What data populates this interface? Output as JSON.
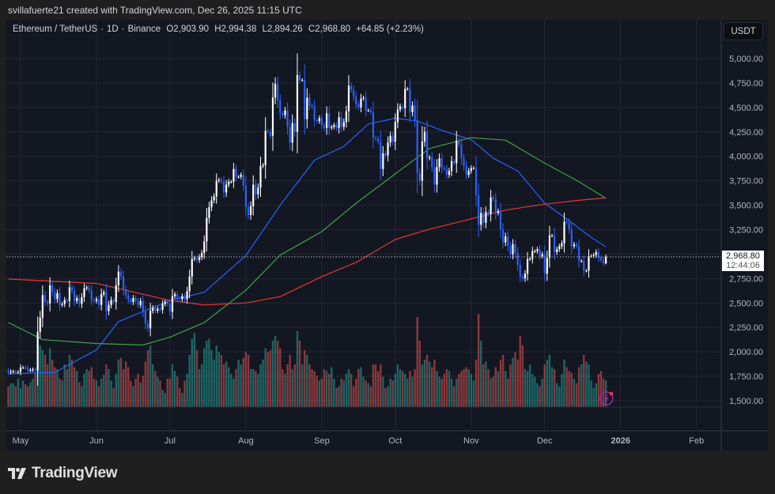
{
  "attribution": "svillafuerte21 created with TradingView.com, Dec 26, 2025 11:15 UTC",
  "legend": {
    "symbol": "Ethereum / TetherUS",
    "interval": "1D",
    "exchange": "Binance",
    "open": "O2,903.90",
    "high": "H2,994.38",
    "low": "L2,894.26",
    "close": "C2,968.80",
    "change": "+64.85 (+2.23%)"
  },
  "currency_button": "USDT",
  "last_price": {
    "value": "2,968.80",
    "countdown": "12:44:06"
  },
  "logo_text": "TradingView",
  "colors": {
    "up_candle": "#ffffff",
    "down_candle": "#2962ff",
    "ma_blue": "#2962ff",
    "ma_green": "#43a047",
    "ma_red": "#e53935",
    "volume_up": "#26a69a",
    "volume_down": "#ef5350",
    "background": "#131722",
    "alert_icon": "#9c27b0"
  },
  "icons": {
    "alert": "lightning-icon",
    "logo": "tradingview-logo-icon"
  },
  "chart_data": {
    "type": "candlestick",
    "first_date": "2025-04-26",
    "y_ticks": [
      "5,000.00",
      "4,750.00",
      "4,500.00",
      "4,250.00",
      "4,000.00",
      "3,750.00",
      "3,500.00",
      "3,250.00",
      "2,750.00",
      "2,500.00",
      "2,250.00",
      "2,000.00",
      "1,750.00",
      "1,500.00"
    ],
    "y_tick_values": [
      5000,
      4750,
      4500,
      4250,
      4000,
      3750,
      3500,
      3250,
      2750,
      2500,
      2250,
      2000,
      1750,
      1500
    ],
    "ylim": [
      1500,
      5000
    ],
    "x_ticks": [
      {
        "label": "May",
        "date": "2025-05-01"
      },
      {
        "label": "Jun",
        "date": "2025-06-01"
      },
      {
        "label": "Jul",
        "date": "2025-07-01"
      },
      {
        "label": "Aug",
        "date": "2025-08-01"
      },
      {
        "label": "Sep",
        "date": "2025-09-01"
      },
      {
        "label": "Oct",
        "date": "2025-10-01"
      },
      {
        "label": "Nov",
        "date": "2025-11-01"
      },
      {
        "label": "Dec",
        "date": "2025-12-01"
      },
      {
        "label": "2026",
        "date": "2026-01-01"
      },
      {
        "label": "Feb",
        "date": "2026-02-01"
      }
    ],
    "first_open": 1810,
    "last_candle": {
      "open": 2903.9,
      "high": 2994.38,
      "low": 2894.26,
      "close": 2968.8
    },
    "closes": [
      1790,
      1800,
      1800,
      1795,
      1795,
      1840,
      1840,
      1835,
      1810,
      1815,
      1820,
      1810,
      2205,
      2350,
      2580,
      2510,
      2495,
      2680,
      2610,
      2540,
      2600,
      2480,
      2490,
      2530,
      2520,
      2660,
      2620,
      2520,
      2550,
      2490,
      2560,
      2650,
      2660,
      2630,
      2530,
      2520,
      2540,
      2480,
      2590,
      2610,
      2415,
      2480,
      2530,
      2510,
      2680,
      2820,
      2770,
      2640,
      2580,
      2530,
      2510,
      2550,
      2520,
      2480,
      2520,
      2410,
      2290,
      2240,
      2420,
      2450,
      2420,
      2440,
      2430,
      2490,
      2510,
      2490,
      2410,
      2570,
      2590,
      2550,
      2540,
      2570,
      2540,
      2620,
      2770,
      2950,
      2960,
      2940,
      2970,
      3010,
      3130,
      3370,
      3480,
      3550,
      3590,
      3750,
      3760,
      3740,
      3630,
      3710,
      3740,
      3740,
      3870,
      3790,
      3790,
      3810,
      3700,
      3480,
      3400,
      3490,
      3710,
      3610,
      3680,
      3900,
      3910,
      4260,
      4250,
      4210,
      4600,
      4740,
      4570,
      4440,
      4420,
      4470,
      4300,
      4140,
      4340,
      4250,
      4830,
      4780,
      4780,
      4380,
      4600,
      4520,
      4510,
      4370,
      4360,
      4390,
      4320,
      4290,
      4440,
      4290,
      4300,
      4320,
      4290,
      4400,
      4300,
      4350,
      4460,
      4720,
      4680,
      4610,
      4530,
      4500,
      4590,
      4600,
      4470,
      4470,
      4450,
      4190,
      4180,
      4150,
      3870,
      4030,
      4010,
      4140,
      4210,
      4150,
      4350,
      4480,
      4510,
      4490,
      4690,
      4690,
      4450,
      4520,
      4370,
      3830,
      3750,
      4150,
      4250,
      3980,
      3990,
      3890,
      3710,
      3890,
      3980,
      3880,
      3870,
      3810,
      3850,
      3950,
      3930,
      4160,
      4120,
      3980,
      3900,
      3810,
      3850,
      3880,
      3880,
      3600,
      3300,
      3420,
      3320,
      3430,
      3410,
      3580,
      3560,
      3420,
      3440,
      3250,
      3120,
      3180,
      3080,
      3000,
      3100,
      3010,
      2890,
      2770,
      2750,
      2800,
      2950,
      2950,
      3030,
      3030,
      3050,
      2980,
      3000,
      2800,
      2960,
      3190,
      3190,
      3020,
      3050,
      3080,
      3110,
      3330,
      3320,
      3250,
      3080,
      3100,
      3080,
      2930,
      2930,
      2830,
      2830,
      2980,
      2980,
      2990,
      3020,
      2960,
      2940,
      2903.9,
      2968.8
    ],
    "volume_relative": [
      22,
      25,
      25,
      22,
      30,
      20,
      28,
      24,
      22,
      26,
      30,
      35,
      72,
      65,
      60,
      55,
      45,
      62,
      50,
      42,
      40,
      30,
      28,
      45,
      40,
      55,
      50,
      42,
      38,
      26,
      22,
      35,
      40,
      38,
      42,
      30,
      28,
      22,
      30,
      34,
      45,
      40,
      28,
      20,
      35,
      50,
      52,
      40,
      48,
      42,
      28,
      22,
      30,
      35,
      26,
      33,
      48,
      60,
      65,
      45,
      38,
      32,
      28,
      18,
      15,
      30,
      30,
      45,
      38,
      32,
      20,
      15,
      28,
      35,
      55,
      72,
      78,
      60,
      40,
      45,
      62,
      70,
      72,
      60,
      50,
      65,
      58,
      55,
      45,
      48,
      42,
      35,
      30,
      40,
      50,
      45,
      52,
      58,
      55,
      40,
      40,
      38,
      35,
      45,
      50,
      62,
      58,
      60,
      70,
      75,
      70,
      62,
      40,
      35,
      45,
      55,
      40,
      45,
      80,
      70,
      45,
      60,
      55,
      45,
      40,
      38,
      33,
      28,
      30,
      40,
      38,
      35,
      42,
      30,
      20,
      22,
      30,
      28,
      35,
      40,
      35,
      22,
      30,
      40,
      42,
      32,
      28,
      25,
      22,
      45,
      45,
      38,
      45,
      32,
      20,
      22,
      30,
      28,
      35,
      45,
      40,
      38,
      35,
      30,
      38,
      32,
      40,
      95,
      70,
      45,
      50,
      55,
      48,
      42,
      50,
      38,
      32,
      30,
      35,
      40,
      38,
      30,
      22,
      30,
      35,
      38,
      40,
      42,
      40,
      35,
      28,
      50,
      98,
      70,
      45,
      48,
      40,
      30,
      32,
      42,
      38,
      50,
      55,
      38,
      30,
      45,
      52,
      58,
      50,
      75,
      65,
      40,
      38,
      45,
      35,
      32,
      25,
      22,
      30,
      45,
      50,
      55,
      42,
      40,
      25,
      22,
      35,
      50,
      42,
      38,
      36,
      30,
      25,
      42,
      45,
      55,
      48,
      45,
      28,
      20,
      25,
      35,
      38,
      30,
      28
    ],
    "moving_averages": [
      {
        "color": "#2962ff",
        "points": [
          [
            "2025-04-26",
            1775
          ],
          [
            "2025-05-15",
            1790
          ],
          [
            "2025-06-01",
            2020
          ],
          [
            "2025-06-10",
            2310
          ],
          [
            "2025-07-01",
            2525
          ],
          [
            "2025-07-15",
            2610
          ],
          [
            "2025-08-01",
            2985
          ],
          [
            "2025-08-15",
            3500
          ],
          [
            "2025-08-29",
            3960
          ],
          [
            "2025-09-10",
            4100
          ],
          [
            "2025-09-20",
            4330
          ],
          [
            "2025-10-01",
            4390
          ],
          [
            "2025-10-10",
            4360
          ],
          [
            "2025-10-20",
            4265
          ],
          [
            "2025-11-01",
            4170
          ],
          [
            "2025-11-10",
            3980
          ],
          [
            "2025-11-20",
            3850
          ],
          [
            "2025-12-01",
            3520
          ],
          [
            "2025-12-10",
            3360
          ],
          [
            "2025-12-20",
            3170
          ],
          [
            "2025-12-26",
            3075
          ]
        ]
      },
      {
        "color": "#43a047",
        "points": [
          [
            "2025-04-26",
            2300
          ],
          [
            "2025-05-10",
            2125
          ],
          [
            "2025-06-01",
            2085
          ],
          [
            "2025-06-20",
            2070
          ],
          [
            "2025-07-01",
            2150
          ],
          [
            "2025-07-15",
            2300
          ],
          [
            "2025-08-01",
            2630
          ],
          [
            "2025-08-15",
            2990
          ],
          [
            "2025-09-01",
            3230
          ],
          [
            "2025-09-15",
            3520
          ],
          [
            "2025-10-01",
            3820
          ],
          [
            "2025-10-15",
            4080
          ],
          [
            "2025-11-01",
            4190
          ],
          [
            "2025-11-15",
            4165
          ],
          [
            "2025-12-01",
            3930
          ],
          [
            "2025-12-15",
            3740
          ],
          [
            "2025-12-26",
            3570
          ]
        ]
      },
      {
        "color": "#e53935",
        "points": [
          [
            "2025-04-26",
            2745
          ],
          [
            "2025-06-01",
            2700
          ],
          [
            "2025-07-01",
            2525
          ],
          [
            "2025-07-15",
            2480
          ],
          [
            "2025-08-01",
            2500
          ],
          [
            "2025-08-15",
            2565
          ],
          [
            "2025-09-01",
            2770
          ],
          [
            "2025-09-15",
            2915
          ],
          [
            "2025-10-01",
            3150
          ],
          [
            "2025-10-15",
            3255
          ],
          [
            "2025-11-01",
            3360
          ],
          [
            "2025-11-15",
            3450
          ],
          [
            "2025-12-01",
            3510
          ],
          [
            "2025-12-15",
            3550
          ],
          [
            "2025-12-26",
            3575
          ]
        ]
      }
    ]
  }
}
